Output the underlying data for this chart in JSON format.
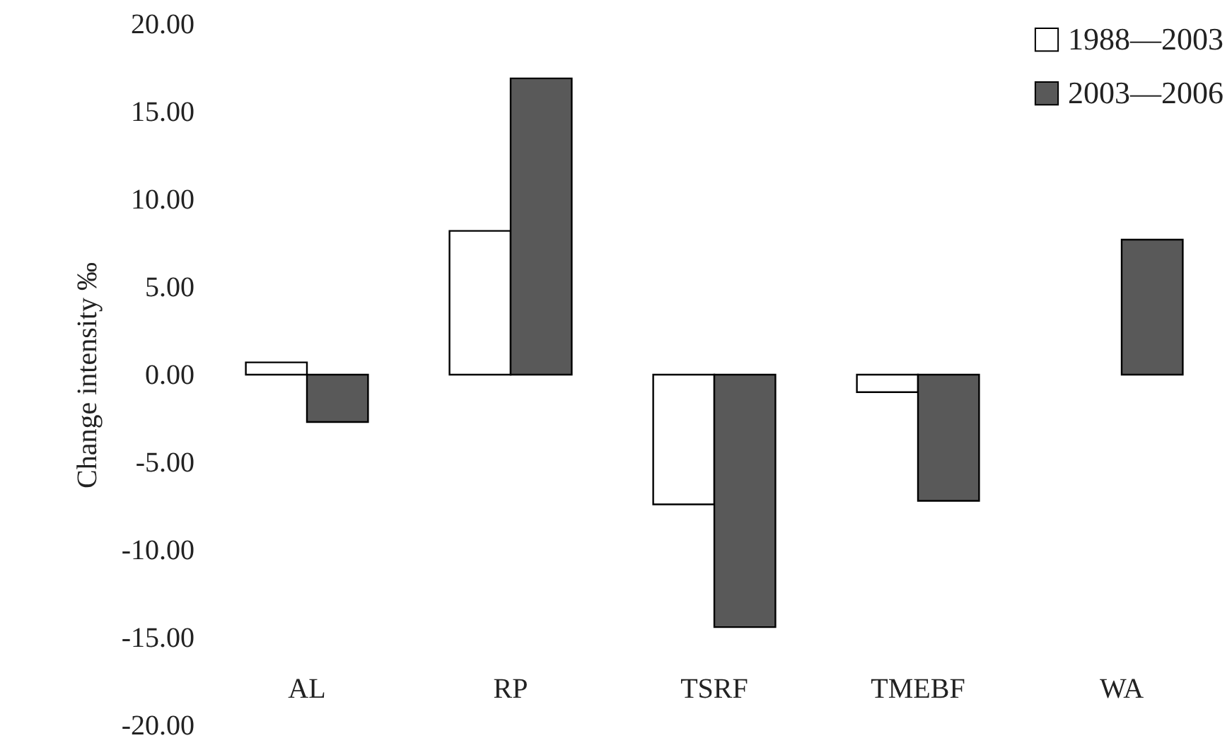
{
  "chart_data": {
    "type": "bar",
    "ylabel": "Change intensity ‰",
    "categories": [
      "AL",
      "RP",
      "TSRF",
      "TMEBF",
      "WA"
    ],
    "series": [
      {
        "name": "1988—2003",
        "color": "#ffffff",
        "values": [
          0.7,
          8.2,
          -7.4,
          -1.0,
          null
        ]
      },
      {
        "name": "2003—2006",
        "color": "#595959",
        "values": [
          -2.7,
          16.9,
          -14.4,
          -7.2,
          7.7
        ]
      }
    ],
    "ylim": [
      -20,
      20
    ],
    "yticks": [
      {
        "value": -20,
        "label": "-20.00"
      },
      {
        "value": -15,
        "label": "-15.00"
      },
      {
        "value": -10,
        "label": "-10.00"
      },
      {
        "value": -5,
        "label": "-5.00"
      },
      {
        "value": 0,
        "label": "0.00"
      },
      {
        "value": 5,
        "label": "5.00"
      },
      {
        "value": 10,
        "label": "10.00"
      },
      {
        "value": 15,
        "label": "15.00"
      },
      {
        "value": 20,
        "label": "20.00"
      }
    ],
    "legend": "top right",
    "grid": false
  }
}
